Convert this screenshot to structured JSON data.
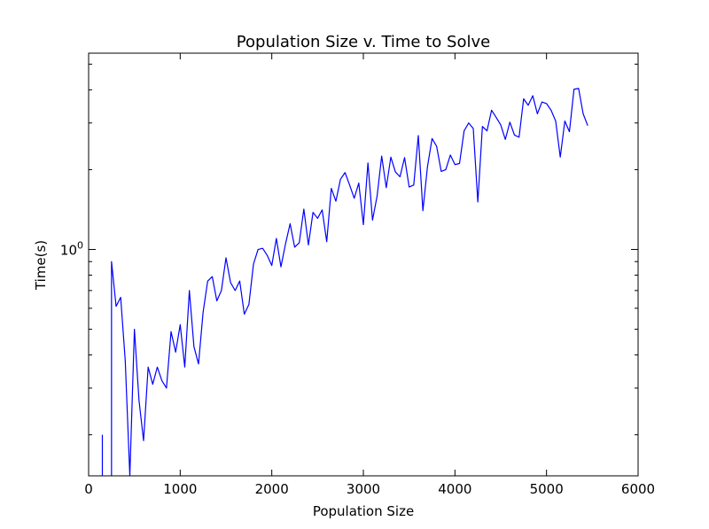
{
  "chart_data": {
    "type": "line",
    "title": "Population Size v. Time to Solve",
    "xlabel": "Population Size",
    "ylabel": "Time(s)",
    "xlim": [
      0,
      6000
    ],
    "ylim": [
      0.14,
      5.5
    ],
    "yscale": "log",
    "grid": false,
    "x_ticks": [
      0,
      1000,
      2000,
      3000,
      4000,
      5000,
      6000
    ],
    "x_tick_labels": [
      "0",
      "1000",
      "2000",
      "3000",
      "4000",
      "5000",
      "6000"
    ],
    "y_major_ticks": [
      1
    ],
    "y_tick_base": "10",
    "y_tick_exp": "0",
    "y_minor_ticks": [
      0.2,
      0.3,
      0.4,
      0.5,
      0.6,
      0.7,
      0.8,
      0.9,
      2,
      3,
      4,
      5
    ],
    "series": [
      {
        "color": "#0000ff",
        "x": [
          150,
          150,
          null,
          250,
          250,
          300,
          350,
          400,
          450,
          500,
          550,
          600,
          650,
          700,
          750,
          800,
          850,
          900,
          950,
          1000,
          1050,
          1100,
          1150,
          1200,
          1250,
          1300,
          1350,
          1400,
          1450,
          1500,
          1550,
          1600,
          1650,
          1700,
          1750,
          1800,
          1850,
          1900,
          1950,
          2000,
          2050,
          2100,
          2150,
          2200,
          2250,
          2300,
          2350,
          2400,
          2450,
          2500,
          2550,
          2600,
          2650,
          2700,
          2750,
          2800,
          2850,
          2900,
          2950,
          3000,
          3050,
          3100,
          3150,
          3200,
          3250,
          3300,
          3350,
          3400,
          3450,
          3500,
          3550,
          3600,
          3650,
          3700,
          3750,
          3800,
          3850,
          3900,
          3950,
          4000,
          4050,
          4100,
          4150,
          4200,
          4250,
          4300,
          4350,
          4400,
          4450,
          4500,
          4550,
          4600,
          4650,
          4700,
          4750,
          4800,
          4850,
          4900,
          4950,
          5000,
          5050,
          5100,
          5150,
          5200,
          5250,
          5300,
          5350,
          5400,
          5450
        ],
        "y": [
          0.14,
          0.2,
          null,
          0.14,
          0.9,
          0.61,
          0.66,
          0.38,
          0.14,
          0.5,
          0.27,
          0.19,
          0.36,
          0.31,
          0.36,
          0.32,
          0.3,
          0.49,
          0.41,
          0.52,
          0.36,
          0.7,
          0.43,
          0.37,
          0.58,
          0.76,
          0.79,
          0.64,
          0.7,
          0.93,
          0.75,
          0.7,
          0.76,
          0.57,
          0.62,
          0.88,
          1.0,
          1.01,
          0.95,
          0.87,
          1.1,
          0.86,
          1.05,
          1.25,
          1.02,
          1.06,
          1.42,
          1.04,
          1.38,
          1.31,
          1.41,
          1.07,
          1.7,
          1.52,
          1.84,
          1.95,
          1.75,
          1.56,
          1.78,
          1.24,
          2.12,
          1.29,
          1.59,
          2.25,
          1.71,
          2.23,
          1.96,
          1.88,
          2.22,
          1.72,
          1.75,
          2.69,
          1.4,
          2.05,
          2.62,
          2.45,
          1.97,
          2.0,
          2.27,
          2.09,
          2.11,
          2.8,
          3.0,
          2.86,
          1.51,
          2.91,
          2.8,
          3.35,
          3.15,
          2.95,
          2.6,
          3.02,
          2.7,
          2.65,
          3.7,
          3.5,
          3.8,
          3.25,
          3.6,
          3.55,
          3.35,
          3.05,
          2.23,
          3.05,
          2.78,
          4.02,
          4.05,
          3.25,
          2.93
        ]
      }
    ]
  }
}
